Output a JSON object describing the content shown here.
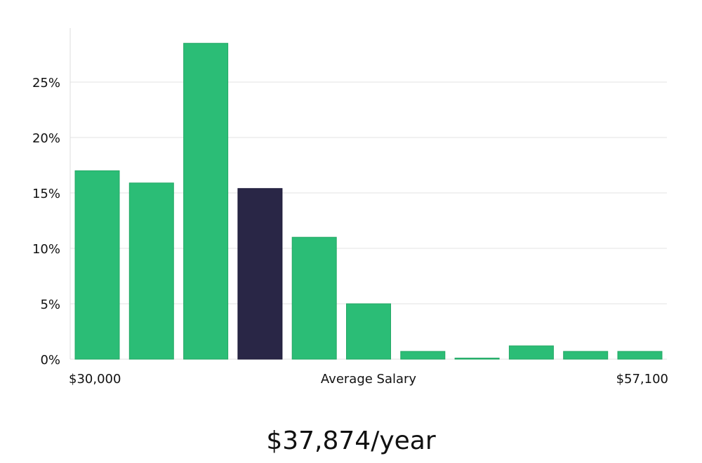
{
  "chart_data": {
    "type": "bar",
    "categories": [
      "1",
      "2",
      "3",
      "4",
      "5",
      "6",
      "7",
      "8",
      "9",
      "10",
      "11"
    ],
    "values": [
      17.0,
      15.9,
      28.5,
      15.4,
      11.0,
      5.0,
      0.7,
      0.1,
      1.2,
      0.7,
      0.7
    ],
    "highlight_index": 3,
    "xlabel": "Average Salary",
    "x_range_labels": {
      "min": "$30,000",
      "max": "$57,100"
    },
    "yticks": [
      0,
      5,
      10,
      15,
      20,
      25
    ],
    "ytick_labels": [
      "0%",
      "5%",
      "10%",
      "15%",
      "20%",
      "25%"
    ],
    "ylim": [
      0,
      30
    ],
    "grid": true,
    "colors": {
      "bar": "#2bbd76",
      "highlight": "#292646",
      "grid": "#e3e3e3",
      "axis": "#dddddd"
    }
  },
  "summary": {
    "average_salary_text": "$37,874/year"
  }
}
